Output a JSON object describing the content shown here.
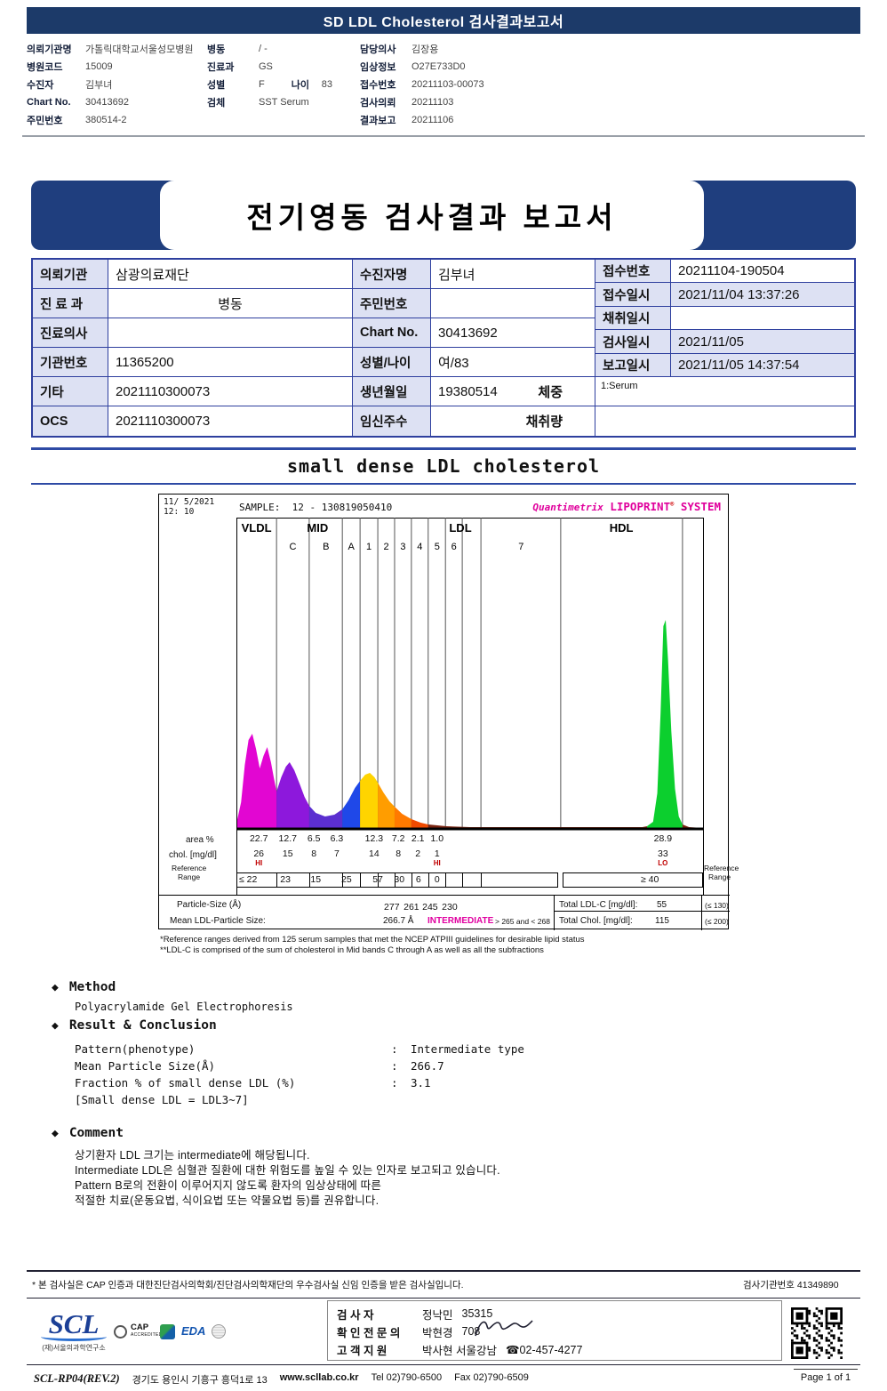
{
  "colors": {
    "header_navy": "#1c3a69",
    "banner_blue": "#1f3e7e",
    "table_border": "#2e3f9e",
    "label_bg": "#dde1f3",
    "brand_magenta": "#e0009c",
    "flag_red": "#cc0000",
    "rule_blue": "#2e4aa5"
  },
  "top_bar": {
    "title": "SD LDL Cholesterol 검사결과보고서"
  },
  "patient_info": {
    "col1": [
      {
        "label": "의뢰기관명",
        "value": "가톨릭대학교서울성모병원"
      },
      {
        "label": "병원코드",
        "value": "15009"
      },
      {
        "label": "수진자",
        "value": "김부녀"
      },
      {
        "label": "Chart No.",
        "value": "30413692"
      },
      {
        "label": "주민번호",
        "value": "380514-2"
      }
    ],
    "col2": [
      {
        "label": "병동",
        "value": "/ -"
      },
      {
        "label": "진료과",
        "value": "GS"
      },
      {
        "label": "성별",
        "value": "F",
        "extra_label": "나이",
        "extra_value": "83"
      },
      {
        "label": "검체",
        "value": "SST Serum"
      }
    ],
    "col3": [
      {
        "label": "담당의사",
        "value": "김장용"
      },
      {
        "label": "임상정보",
        "value": "O27E733D0"
      },
      {
        "label": "접수번호",
        "value": "20211103-00073"
      },
      {
        "label": "검사의뢰",
        "value": "20211103"
      },
      {
        "label": "결과보고",
        "value": "20211106"
      }
    ]
  },
  "banner": {
    "title": "전기영동 검사결과 보고서"
  },
  "main_table": {
    "left": [
      {
        "label": "의뢰기관",
        "value": "삼광의료재단"
      },
      {
        "label": "진 료 과",
        "value": "병동"
      },
      {
        "label": "진료의사",
        "value": ""
      },
      {
        "label": "기관번호",
        "value": "11365200"
      },
      {
        "label": "기타",
        "value": "2021110300073"
      },
      {
        "label": "OCS",
        "value": "2021110300073"
      }
    ],
    "middle": [
      {
        "label": "수진자명",
        "value": "김부녀"
      },
      {
        "label": "주민번호",
        "value": ""
      },
      {
        "label": "Chart No.",
        "value": "30413692"
      },
      {
        "label": "성별/나이",
        "value": "여/83"
      },
      {
        "label": "생년월일",
        "value": "19380514",
        "suffix": "체중"
      },
      {
        "label": "임신주수",
        "value": "",
        "suffix": "채취량"
      }
    ],
    "right": [
      {
        "label": "접수번호",
        "value": "20211104-190504"
      },
      {
        "label": "접수일시",
        "value": "2021/11/04 13:37:26"
      },
      {
        "label": "채취일시",
        "value": ""
      },
      {
        "label": "검사일시",
        "value": "2021/11/05"
      },
      {
        "label": "보고일시",
        "value": "2021/11/05 14:37:54"
      }
    ],
    "serum_note": "1:Serum"
  },
  "chart_data": {
    "type": "area",
    "section_title": "small dense LDL cholesterol",
    "date": "11/ 5/2021",
    "time": "12: 10",
    "sample_label": "SAMPLE:",
    "sample_value": "12 - 130819050410",
    "brand_1": "Quantimetrix",
    "brand_2": "LIPOPRINT",
    "brand_reg": "®",
    "brand_3": "SYSTEM",
    "group_labels": [
      [
        "VLDL",
        4.3
      ],
      [
        "MID",
        17.4
      ],
      [
        "LDL",
        48.0
      ],
      [
        "HDL",
        82.5
      ]
    ],
    "sub_labels": [
      [
        "C",
        12.1
      ],
      [
        "B",
        19.2
      ],
      [
        "A",
        24.6
      ],
      [
        "1",
        28.4
      ],
      [
        "2",
        32.1
      ],
      [
        "3",
        35.7
      ],
      [
        "4",
        39.3
      ],
      [
        "5",
        43.0
      ],
      [
        "6",
        46.6
      ],
      [
        "7",
        61.0
      ]
    ],
    "grid_lines_pct": [
      8.6,
      15.6,
      22.7,
      26.5,
      30.3,
      33.9,
      37.5,
      41.1,
      44.8,
      48.4,
      52.4,
      69.5,
      95.6
    ],
    "trace": [
      {
        "color": "#e206d2",
        "points": [
          [
            0,
            6
          ],
          [
            1,
            30
          ],
          [
            1.8,
            72
          ],
          [
            2.6,
            100
          ],
          [
            3.4,
            107
          ],
          [
            4.2,
            90
          ],
          [
            5,
            68
          ],
          [
            5.8,
            82
          ],
          [
            6.6,
            92
          ],
          [
            7.4,
            75
          ],
          [
            8,
            58
          ],
          [
            8.6,
            42
          ]
        ]
      },
      {
        "color": "#8d18dc",
        "points": [
          [
            8.6,
            42
          ],
          [
            9.6,
            58
          ],
          [
            10.6,
            70
          ],
          [
            11.4,
            75
          ],
          [
            12.4,
            66
          ],
          [
            13.6,
            50
          ],
          [
            14.6,
            36
          ],
          [
            15.6,
            26
          ]
        ]
      },
      {
        "color": "#5b2fd0",
        "points": [
          [
            15.6,
            26
          ],
          [
            17,
            18
          ],
          [
            19,
            14
          ],
          [
            21,
            16
          ],
          [
            22.7,
            22
          ]
        ]
      },
      {
        "color": "#1f48e8",
        "points": [
          [
            22.7,
            22
          ],
          [
            24,
            32
          ],
          [
            25.4,
            46
          ],
          [
            26.5,
            54
          ]
        ]
      },
      {
        "color": "#ffd400",
        "points": [
          [
            26.5,
            54
          ],
          [
            27.6,
            61
          ],
          [
            28.6,
            63
          ],
          [
            29.6,
            58
          ],
          [
            30.3,
            52
          ]
        ]
      },
      {
        "color": "#ff9d00",
        "points": [
          [
            30.3,
            52
          ],
          [
            31.5,
            41
          ],
          [
            32.8,
            31
          ],
          [
            33.9,
            25
          ]
        ]
      },
      {
        "color": "#ff7a00",
        "points": [
          [
            33.9,
            25
          ],
          [
            35.5,
            17
          ],
          [
            37.5,
            11
          ]
        ]
      },
      {
        "color": "#f04a00",
        "points": [
          [
            37.5,
            11
          ],
          [
            39.5,
            7
          ],
          [
            41.1,
            5
          ]
        ]
      },
      {
        "color": "#7a2410",
        "points": [
          [
            41.1,
            5
          ],
          [
            45,
            3
          ],
          [
            50,
            2
          ],
          [
            60,
            2
          ],
          [
            70,
            2
          ],
          [
            80,
            2
          ],
          [
            87,
            2
          ],
          [
            88,
            3
          ]
        ]
      },
      {
        "color": "#0ccf2e",
        "points": [
          [
            88,
            3
          ],
          [
            89.3,
            8
          ],
          [
            90.2,
            40
          ],
          [
            90.9,
            130
          ],
          [
            91.5,
            228
          ],
          [
            92,
            235
          ],
          [
            92.5,
            190
          ],
          [
            93.2,
            110
          ],
          [
            94,
            45
          ],
          [
            94.8,
            14
          ],
          [
            95.6,
            5
          ]
        ]
      },
      {
        "color": "#7a2410",
        "points": [
          [
            95.6,
            5
          ],
          [
            97,
            2
          ],
          [
            100,
            1
          ]
        ]
      }
    ],
    "area_row": {
      "label": "area %",
      "values": [
        [
          4.8,
          "22.7"
        ],
        [
          11.0,
          "12.7"
        ],
        [
          16.6,
          "6.5"
        ],
        [
          21.5,
          "6.3"
        ],
        [
          29.5,
          "12.3"
        ],
        [
          34.7,
          "7.2"
        ],
        [
          38.9,
          "2.1"
        ],
        [
          43.0,
          "1.0"
        ],
        [
          91.4,
          "28.9"
        ]
      ]
    },
    "chol_row": {
      "label": "chol. [mg/dl]",
      "values": [
        [
          4.8,
          "26"
        ],
        [
          11.0,
          "15"
        ],
        [
          16.6,
          "8"
        ],
        [
          21.5,
          "7"
        ],
        [
          29.5,
          "14"
        ],
        [
          34.7,
          "8"
        ],
        [
          38.9,
          "2"
        ],
        [
          43.0,
          "1"
        ],
        [
          91.4,
          "33"
        ]
      ],
      "flags": [
        [
          4.8,
          "HI"
        ],
        [
          43.0,
          "HI"
        ],
        [
          91.4,
          "LO"
        ]
      ]
    },
    "ref_label_1": "Reference",
    "ref_label_2": "Range",
    "ref_row": {
      "values": [
        [
          2.5,
          "≤ 22"
        ],
        [
          10.5,
          "23"
        ],
        [
          17.0,
          "15"
        ],
        [
          23.6,
          "25"
        ],
        [
          30.3,
          "57"
        ],
        [
          34.9,
          "30"
        ],
        [
          39.0,
          "6"
        ],
        [
          43.0,
          "0"
        ],
        [
          88.6,
          "≥ 40"
        ]
      ]
    },
    "particle_row": {
      "label": "Particle-Size (Å)",
      "values": [
        [
          33.3,
          "277"
        ],
        [
          37.5,
          "261"
        ],
        [
          41.5,
          "245"
        ],
        [
          45.7,
          "230"
        ]
      ],
      "right_label": "Total LDL-C [mg/dl]:",
      "right_value": "55",
      "right_ref": "(≤ 130)"
    },
    "mean_row": {
      "label": "Mean LDL-Particle Size:",
      "value": "266.7 Å",
      "highlight": "INTERMEDIATE",
      "range": "> 265 and < 268",
      "right_label": "Total Chol. [mg/dl]:",
      "right_value": "115",
      "right_ref": "(≤ 200)"
    },
    "footnote_1": "*Reference ranges derived from 125 serum samples that met the NCEP ATPIII guidelines for desirable lipid status",
    "footnote_2": "**LDL-C is comprised of the sum of cholesterol in Mid bands C through A as well as all the subfractions"
  },
  "method_section": {
    "bullet": "◆",
    "title": "Method",
    "body": "Polyacrylamide Gel Electrophoresis"
  },
  "result_section": {
    "bullet": "◆",
    "title": "Result & Conclusion",
    "rows": [
      {
        "label": "Pattern(phenotype)",
        "colon": ":",
        "value": "Intermediate type"
      },
      {
        "label": "Mean Particle Size(Å)",
        "colon": ":",
        "value": "266.7"
      },
      {
        "label": "Fraction % of small dense LDL (%)",
        "colon": ":",
        "value": "3.1"
      },
      {
        "label": "[Small dense LDL = LDL3~7]",
        "colon": "",
        "value": ""
      }
    ]
  },
  "comment_section": {
    "bullet": "◆",
    "title": "Comment",
    "lines": [
      "상기환자 LDL 크기는 intermediate에 해당됩니다.",
      "Intermediate LDL은 심혈관 질환에 대한 위험도를 높일 수 있는 인자로 보고되고 있습니다.",
      "Pattern B로의 전환이 이루어지지 않도록 환자의 임상상태에 따른",
      "적절한 치료(운동요법, 식이요법 또는 약물요법 등)를 권유합니다."
    ]
  },
  "footer": {
    "cert_note": "* 본 검사실은 CAP 인증과 대한진단검사의학회/진단검사의학재단의 우수검사실 신임 인증을 받은 검사실입니다.",
    "lab_no_label": "검사기관번호",
    "lab_no": "41349890",
    "logo_text": "SCL",
    "logo_sub": "(재)서울의과학연구소",
    "cap_line1": "CAP",
    "cap_line2": "ACCREDITED",
    "eda_label": "EDA",
    "staff": [
      {
        "label": "검  사  자",
        "name": "정낙민",
        "extra": "35315"
      },
      {
        "label": "확 인 전 문 의",
        "name": "박현경",
        "extra": "708"
      },
      {
        "label": "고 객 지 원",
        "name": "박사현 서울강남",
        "extra": "☎02-457-4277"
      }
    ],
    "doc_no": "SCL-RP04(REV.2)",
    "address": "경기도 용인시 기흥구 흥덕1로 13",
    "website": "www.scllab.co.kr",
    "tel": "Tel 02)790-6500",
    "fax": "Fax 02)790-6509",
    "page": "Page 1 of 1"
  }
}
